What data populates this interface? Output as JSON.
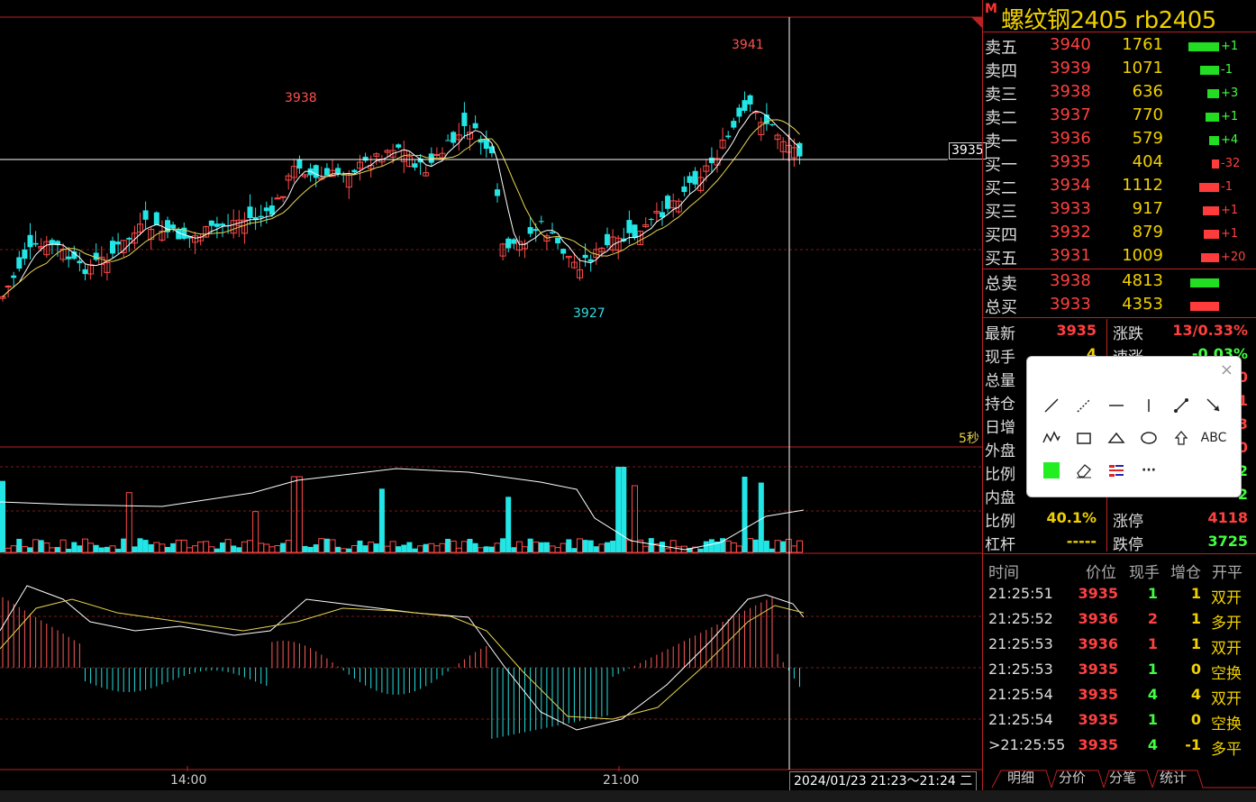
{
  "chart": {
    "time_axis": [
      "14:00",
      "21:00"
    ],
    "crosshair_time": "2024/01/23 21:23～21:24 二",
    "crosshair_price": "3935",
    "period_label": "5秒",
    "high_label": "3941",
    "high_label_2": "3938",
    "low_label": "3927"
  },
  "panel": {
    "badge": "M",
    "title": "螺纹钢2405  rb2405",
    "orderbook": [
      {
        "label": "卖五",
        "price": "3940",
        "volume": "1761",
        "change": "+1",
        "bar": 0.9,
        "side": "sell"
      },
      {
        "label": "卖四",
        "price": "3939",
        "volume": "1071",
        "change": "-1",
        "bar": 0.55,
        "side": "sell"
      },
      {
        "label": "卖三",
        "price": "3938",
        "volume": "636",
        "change": "+3",
        "bar": 0.33,
        "side": "sell"
      },
      {
        "label": "卖二",
        "price": "3937",
        "volume": "770",
        "change": "+1",
        "bar": 0.4,
        "side": "sell"
      },
      {
        "label": "卖一",
        "price": "3936",
        "volume": "579",
        "change": "+4",
        "bar": 0.3,
        "side": "sell"
      },
      {
        "label": "买一",
        "price": "3935",
        "volume": "404",
        "change": "-32",
        "bar": 0.2,
        "side": "buy"
      },
      {
        "label": "买二",
        "price": "3934",
        "volume": "1112",
        "change": "-1",
        "bar": 0.58,
        "side": "buy"
      },
      {
        "label": "买三",
        "price": "3933",
        "volume": "917",
        "change": "+1",
        "bar": 0.48,
        "side": "buy"
      },
      {
        "label": "买四",
        "price": "3932",
        "volume": "879",
        "change": "+1",
        "bar": 0.46,
        "side": "buy"
      },
      {
        "label": "买五",
        "price": "3931",
        "volume": "1009",
        "change": "+20",
        "bar": 0.53,
        "side": "buy"
      }
    ],
    "totals": [
      {
        "label": "总卖",
        "price": "3938",
        "volume": "4813",
        "side": "sell"
      },
      {
        "label": "总买",
        "price": "3933",
        "volume": "4353",
        "side": "buy"
      }
    ],
    "info": [
      {
        "l1": "最新",
        "v1": "3935",
        "c1": "#ff4040",
        "l2": "涨跌",
        "v2": "13/0.33%",
        "c2": "#ff4040"
      },
      {
        "l1": "现手",
        "v1": "4",
        "c1": "#f0d000",
        "l2": "速涨",
        "v2": "-0.03%",
        "c2": "#40ff40"
      },
      {
        "l1": "总量",
        "v1": "",
        "c1": "#f0d000",
        "l2": "",
        "v2": "0",
        "c2": "#ff4040"
      },
      {
        "l1": "持仓",
        "v1": "",
        "c1": "#f0d000",
        "l2": "",
        "v2": "1",
        "c2": "#ff4040"
      },
      {
        "l1": "日增",
        "v1": "",
        "c1": "#f0d000",
        "l2": "",
        "v2": "3",
        "c2": "#ff4040"
      },
      {
        "l1": "外盘",
        "v1": "",
        "c1": "#f0d000",
        "l2": "",
        "v2": "0",
        "c2": "#ff4040"
      },
      {
        "l1": "比例",
        "v1": "",
        "c1": "#f0d000",
        "l2": "",
        "v2": "2",
        "c2": "#40ff40"
      },
      {
        "l1": "内盘",
        "v1": "",
        "c1": "#f0d000",
        "l2": "",
        "v2": "2",
        "c2": "#40ff40"
      },
      {
        "l1": "比例",
        "v1": "40.1%",
        "c1": "#f0d000",
        "l2": "涨停",
        "v2": "4118",
        "c2": "#ff4040"
      },
      {
        "l1": "杠杆",
        "v1": "-----",
        "c1": "#f0d000",
        "l2": "跌停",
        "v2": "3725",
        "c2": "#40ff40"
      }
    ],
    "trades_head": {
      "time": "时间",
      "price": "价位",
      "hand": "现手",
      "chg": "增仓",
      "kind": "开平"
    },
    "trades": [
      {
        "time": "21:25:51",
        "price": "3935",
        "hand": "1",
        "hand_color": "#40ff40",
        "chg": "1",
        "kind": "双开"
      },
      {
        "time": "21:25:52",
        "price": "3936",
        "hand": "2",
        "hand_color": "#ff4040",
        "chg": "1",
        "kind": "多开"
      },
      {
        "time": "21:25:53",
        "price": "3936",
        "hand": "1",
        "hand_color": "#ff4040",
        "chg": "1",
        "kind": "双开"
      },
      {
        "time": "21:25:53",
        "price": "3935",
        "hand": "1",
        "hand_color": "#40ff40",
        "chg": "0",
        "kind": "空换"
      },
      {
        "time": "21:25:54",
        "price": "3935",
        "hand": "4",
        "hand_color": "#40ff40",
        "chg": "4",
        "kind": "双开"
      },
      {
        "time": "21:25:54",
        "price": "3935",
        "hand": "1",
        "hand_color": "#40ff40",
        "chg": "0",
        "kind": "空换"
      },
      {
        "time": ">21:25:55",
        "price": "3935",
        "hand": "4",
        "hand_color": "#40ff40",
        "chg": "-1",
        "kind": "多平"
      }
    ],
    "tabs": [
      "明细",
      "分价",
      "分笔",
      "统计"
    ]
  },
  "toolbox": {
    "close": "×",
    "text_tool": "ABC",
    "more": "···",
    "color": "#22ee22"
  }
}
